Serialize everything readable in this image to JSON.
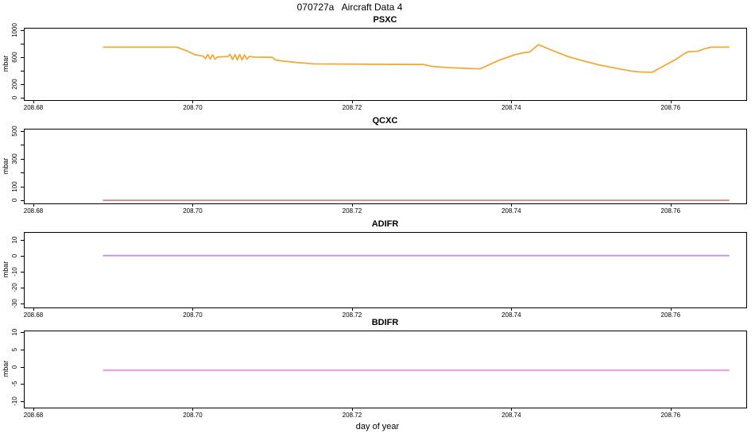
{
  "chart_data": {
    "type": "line",
    "title": "070727a   Aircraft Data 4",
    "xlabel": "day of year",
    "x_range": [
      208.6788,
      208.7695
    ],
    "x_ticks": [
      {
        "v": 208.68,
        "label": "208.68"
      },
      {
        "v": 208.7,
        "label": "208.70"
      },
      {
        "v": 208.72,
        "label": "208.72"
      },
      {
        "v": 208.74,
        "label": "208.74"
      },
      {
        "v": 208.76,
        "label": "208.76"
      }
    ],
    "grid": false,
    "legend": "none",
    "panels": [
      {
        "name": "PSXC",
        "ylabel": "mbar",
        "color": "#F2A93B",
        "y_range": [
          -40,
          1040
        ],
        "y_ticks": [
          {
            "v": 0,
            "label": "0"
          },
          {
            "v": 200,
            "label": "200"
          },
          {
            "v": 400,
            "label": ""
          },
          {
            "v": 600,
            "label": "600"
          },
          {
            "v": 800,
            "label": ""
          },
          {
            "v": 1000,
            "label": "1000"
          }
        ],
        "points": [
          [
            208.6888,
            750
          ],
          [
            208.698,
            750
          ],
          [
            208.6993,
            693
          ],
          [
            208.7003,
            638
          ],
          [
            208.7013,
            617
          ],
          [
            208.7016,
            580
          ],
          [
            208.7019,
            641
          ],
          [
            208.7022,
            573
          ],
          [
            208.7025,
            637
          ],
          [
            208.7028,
            571
          ],
          [
            208.7031,
            603
          ],
          [
            208.7036,
            607
          ],
          [
            208.7044,
            610
          ],
          [
            208.7047,
            643
          ],
          [
            208.705,
            566
          ],
          [
            208.7053,
            639
          ],
          [
            208.7056,
            562
          ],
          [
            208.7059,
            641
          ],
          [
            208.7062,
            560
          ],
          [
            208.7065,
            635
          ],
          [
            208.7068,
            571
          ],
          [
            208.7071,
            611
          ],
          [
            208.7078,
            602
          ],
          [
            208.71,
            598
          ],
          [
            208.7104,
            559
          ],
          [
            208.711,
            548
          ],
          [
            208.7131,
            521
          ],
          [
            208.7152,
            501
          ],
          [
            208.722,
            497
          ],
          [
            208.729,
            492
          ],
          [
            208.7301,
            463
          ],
          [
            208.7321,
            446
          ],
          [
            208.7345,
            433
          ],
          [
            208.7361,
            428
          ],
          [
            208.7384,
            552
          ],
          [
            208.7405,
            641
          ],
          [
            208.7416,
            669
          ],
          [
            208.7423,
            678
          ],
          [
            208.7434,
            788
          ],
          [
            208.7452,
            699
          ],
          [
            208.7471,
            611
          ],
          [
            208.7492,
            540
          ],
          [
            208.7512,
            481
          ],
          [
            208.7533,
            431
          ],
          [
            208.7552,
            392
          ],
          [
            208.7563,
            380
          ],
          [
            208.7577,
            377
          ],
          [
            208.7591,
            468
          ],
          [
            208.7606,
            564
          ],
          [
            208.7617,
            653
          ],
          [
            208.7623,
            684
          ],
          [
            208.7634,
            690
          ],
          [
            208.7643,
            729
          ],
          [
            208.7651,
            750
          ],
          [
            208.7673,
            750
          ]
        ]
      },
      {
        "name": "QCXC",
        "ylabel": "mbar",
        "color": "#D5837B",
        "y_range": [
          -21,
          515
        ],
        "y_ticks": [
          {
            "v": 0,
            "label": "0"
          },
          {
            "v": 100,
            "label": "100"
          },
          {
            "v": 200,
            "label": ""
          },
          {
            "v": 300,
            "label": "300"
          },
          {
            "v": 400,
            "label": ""
          },
          {
            "v": 500,
            "label": "500"
          }
        ],
        "points": [
          [
            208.6888,
            1
          ],
          [
            208.7673,
            1
          ]
        ]
      },
      {
        "name": "ADIFR",
        "ylabel": "mbar",
        "color": "#C690E4",
        "y_range": [
          -32.65,
          14.85
        ],
        "y_ticks": [
          {
            "v": 10,
            "label": "10"
          },
          {
            "v": 0,
            "label": "0"
          },
          {
            "v": -10,
            "label": "-10"
          },
          {
            "v": -20,
            "label": "-20"
          },
          {
            "v": -30,
            "label": "-30"
          }
        ],
        "points": [
          [
            208.6888,
            0
          ],
          [
            208.7673,
            0
          ]
        ]
      },
      {
        "name": "BDIFR",
        "ylabel": "mbar",
        "color": "#F78BEA",
        "y_range": [
          -11.77,
          10.48
        ],
        "y_ticks": [
          {
            "v": 10,
            "label": "10"
          },
          {
            "v": 5,
            "label": "5"
          },
          {
            "v": 0,
            "label": "0"
          },
          {
            "v": -5,
            "label": "-5"
          },
          {
            "v": -10,
            "label": "-10"
          }
        ],
        "points": [
          [
            208.6888,
            -1
          ],
          [
            208.7673,
            -1
          ]
        ]
      }
    ]
  }
}
